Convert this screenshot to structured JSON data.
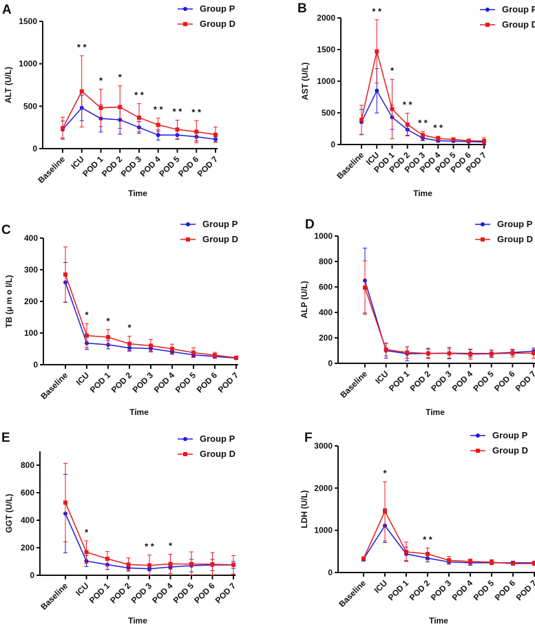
{
  "colors": {
    "group_p": "#1a1adf",
    "group_d": "#e8191d",
    "axis": "#111111"
  },
  "chart_data": [
    {
      "panel": "A",
      "type": "line",
      "ylabel": "ALT (U/L)",
      "xlabel": "Time",
      "categories": [
        "Baseline",
        "ICU",
        "POD 1",
        "POD 2",
        "POD 3",
        "POD 4",
        "POD 5",
        "POD 6",
        "POD 7"
      ],
      "ylim": [
        0,
        1500
      ],
      "yticks": [
        0,
        500,
        1000,
        1500
      ],
      "series": [
        {
          "name": "Group P",
          "values": [
            225,
            480,
            355,
            340,
            250,
            160,
            160,
            140,
            110
          ],
          "error": [
            100,
            150,
            160,
            170,
            70,
            60,
            50,
            50,
            30
          ]
        },
        {
          "name": "Group D",
          "values": [
            240,
            675,
            480,
            490,
            365,
            280,
            225,
            200,
            165
          ],
          "error": [
            130,
            420,
            220,
            250,
            165,
            80,
            110,
            130,
            90
          ]
        }
      ],
      "significance": [
        "",
        "* *",
        "*",
        "*",
        "* *",
        "* *",
        "* *",
        "* *",
        ""
      ]
    },
    {
      "panel": "B",
      "type": "line",
      "ylabel": "AST (U/L)",
      "xlabel": "Time",
      "categories": [
        "Baseline",
        "ICU",
        "POD 1",
        "POD 2",
        "POD 3",
        "POD 4",
        "POD 5",
        "POD 6",
        "POD 7"
      ],
      "ylim": [
        0,
        2000
      ],
      "yticks": [
        0,
        500,
        1000,
        1500,
        2000
      ],
      "series": [
        {
          "name": "Group P",
          "values": [
            355,
            850,
            430,
            235,
            100,
            60,
            55,
            45,
            40
          ],
          "error": [
            200,
            350,
            190,
            90,
            40,
            20,
            15,
            15,
            15
          ]
        },
        {
          "name": "Group D",
          "values": [
            390,
            1470,
            560,
            315,
            150,
            95,
            80,
            60,
            55
          ],
          "error": [
            230,
            500,
            470,
            180,
            55,
            35,
            20,
            20,
            50
          ]
        }
      ],
      "significance": [
        "",
        "* *",
        "*",
        "* *",
        "* *",
        "* *",
        "",
        "",
        ""
      ]
    },
    {
      "panel": "C",
      "type": "line",
      "ylabel": "TB (μ m o l/L)",
      "xlabel": "Time",
      "categories": [
        "Baseline",
        "ICU",
        "POD 1",
        "POD 2",
        "POD 3",
        "POD 4",
        "POD 5",
        "POD 6",
        "POD 7"
      ],
      "ylim": [
        0,
        400
      ],
      "yticks": [
        0,
        100,
        200,
        300,
        400
      ],
      "series": [
        {
          "name": "Group P",
          "values": [
            260,
            68,
            63,
            53,
            51,
            41,
            31,
            26,
            21
          ],
          "error": [
            63,
            20,
            13,
            8,
            8,
            8,
            6,
            6,
            5
          ]
        },
        {
          "name": "Group D",
          "values": [
            285,
            92,
            87,
            66,
            60,
            50,
            38,
            30,
            22
          ],
          "error": [
            87,
            38,
            24,
            24,
            20,
            15,
            15,
            9,
            5
          ]
        }
      ],
      "significance": [
        "",
        "*",
        "*",
        "*",
        "",
        "",
        "",
        "",
        ""
      ]
    },
    {
      "panel": "D",
      "type": "line",
      "ylabel": "ALP (U/L)",
      "xlabel": "Time",
      "categories": [
        "Baseline",
        "ICU",
        "POD 1",
        "POD 2",
        "POD 3",
        "POD 4",
        "POD 5",
        "POD 6",
        "POD 7"
      ],
      "ylim": [
        0,
        1000
      ],
      "yticks": [
        0,
        200,
        400,
        600,
        800,
        1000
      ],
      "series": [
        {
          "name": "Group P",
          "values": [
            650,
            100,
            75,
            78,
            80,
            78,
            78,
            85,
            95
          ],
          "error": [
            255,
            60,
            55,
            35,
            45,
            30,
            25,
            20,
            25
          ]
        },
        {
          "name": "Group D",
          "values": [
            595,
            108,
            85,
            78,
            78,
            72,
            75,
            80,
            80
          ],
          "error": [
            210,
            50,
            45,
            40,
            35,
            40,
            30,
            30,
            40
          ]
        }
      ],
      "significance": [
        "",
        "",
        "",
        "",
        "",
        "",
        "",
        "",
        ""
      ]
    },
    {
      "panel": "E",
      "type": "line",
      "ylabel": "GGT (U/L)",
      "xlabel": "Time",
      "categories": [
        "Baseline",
        "ICU",
        "POD 1",
        "POD 2",
        "POD 3",
        "POD 4",
        "POD 5",
        "POD 6",
        "POD 7"
      ],
      "ylim": [
        0,
        900
      ],
      "yticks": [
        0,
        200,
        400,
        600,
        800
      ],
      "series": [
        {
          "name": "Group P",
          "values": [
            448,
            103,
            77,
            53,
            47,
            60,
            70,
            75,
            75
          ],
          "error": [
            285,
            40,
            35,
            20,
            15,
            15,
            45,
            40,
            25
          ]
        },
        {
          "name": "Group D",
          "values": [
            528,
            168,
            120,
            78,
            72,
            82,
            82,
            80,
            76
          ],
          "error": [
            285,
            82,
            52,
            48,
            75,
            70,
            88,
            85,
            67
          ]
        }
      ],
      "significance": [
        "",
        "*",
        "",
        "",
        "* *",
        "*",
        "",
        "",
        ""
      ]
    },
    {
      "panel": "F",
      "type": "line",
      "ylabel": "LDH (U/L)",
      "xlabel": "Time",
      "categories": [
        "Baseline",
        "ICU",
        "POD 1",
        "POD 2",
        "POD 3",
        "POD 4",
        "POD 5",
        "POD 6",
        "POD 7"
      ],
      "ylim": [
        0,
        3000
      ],
      "yticks": [
        0,
        1000,
        2000,
        3000
      ],
      "series": [
        {
          "name": "Group  P",
          "values": [
            320,
            1110,
            440,
            340,
            250,
            230,
            230,
            230,
            230
          ],
          "error": [
            50,
            400,
            160,
            90,
            50,
            60,
            40,
            40,
            40
          ]
        },
        {
          "name": "Group  D",
          "values": [
            330,
            1450,
            490,
            440,
            290,
            260,
            245,
            210,
            215
          ],
          "error": [
            40,
            700,
            230,
            140,
            90,
            60,
            60,
            40,
            50
          ]
        }
      ],
      "significance": [
        "",
        "*",
        "",
        "* *",
        "",
        "",
        "",
        "",
        ""
      ]
    }
  ]
}
